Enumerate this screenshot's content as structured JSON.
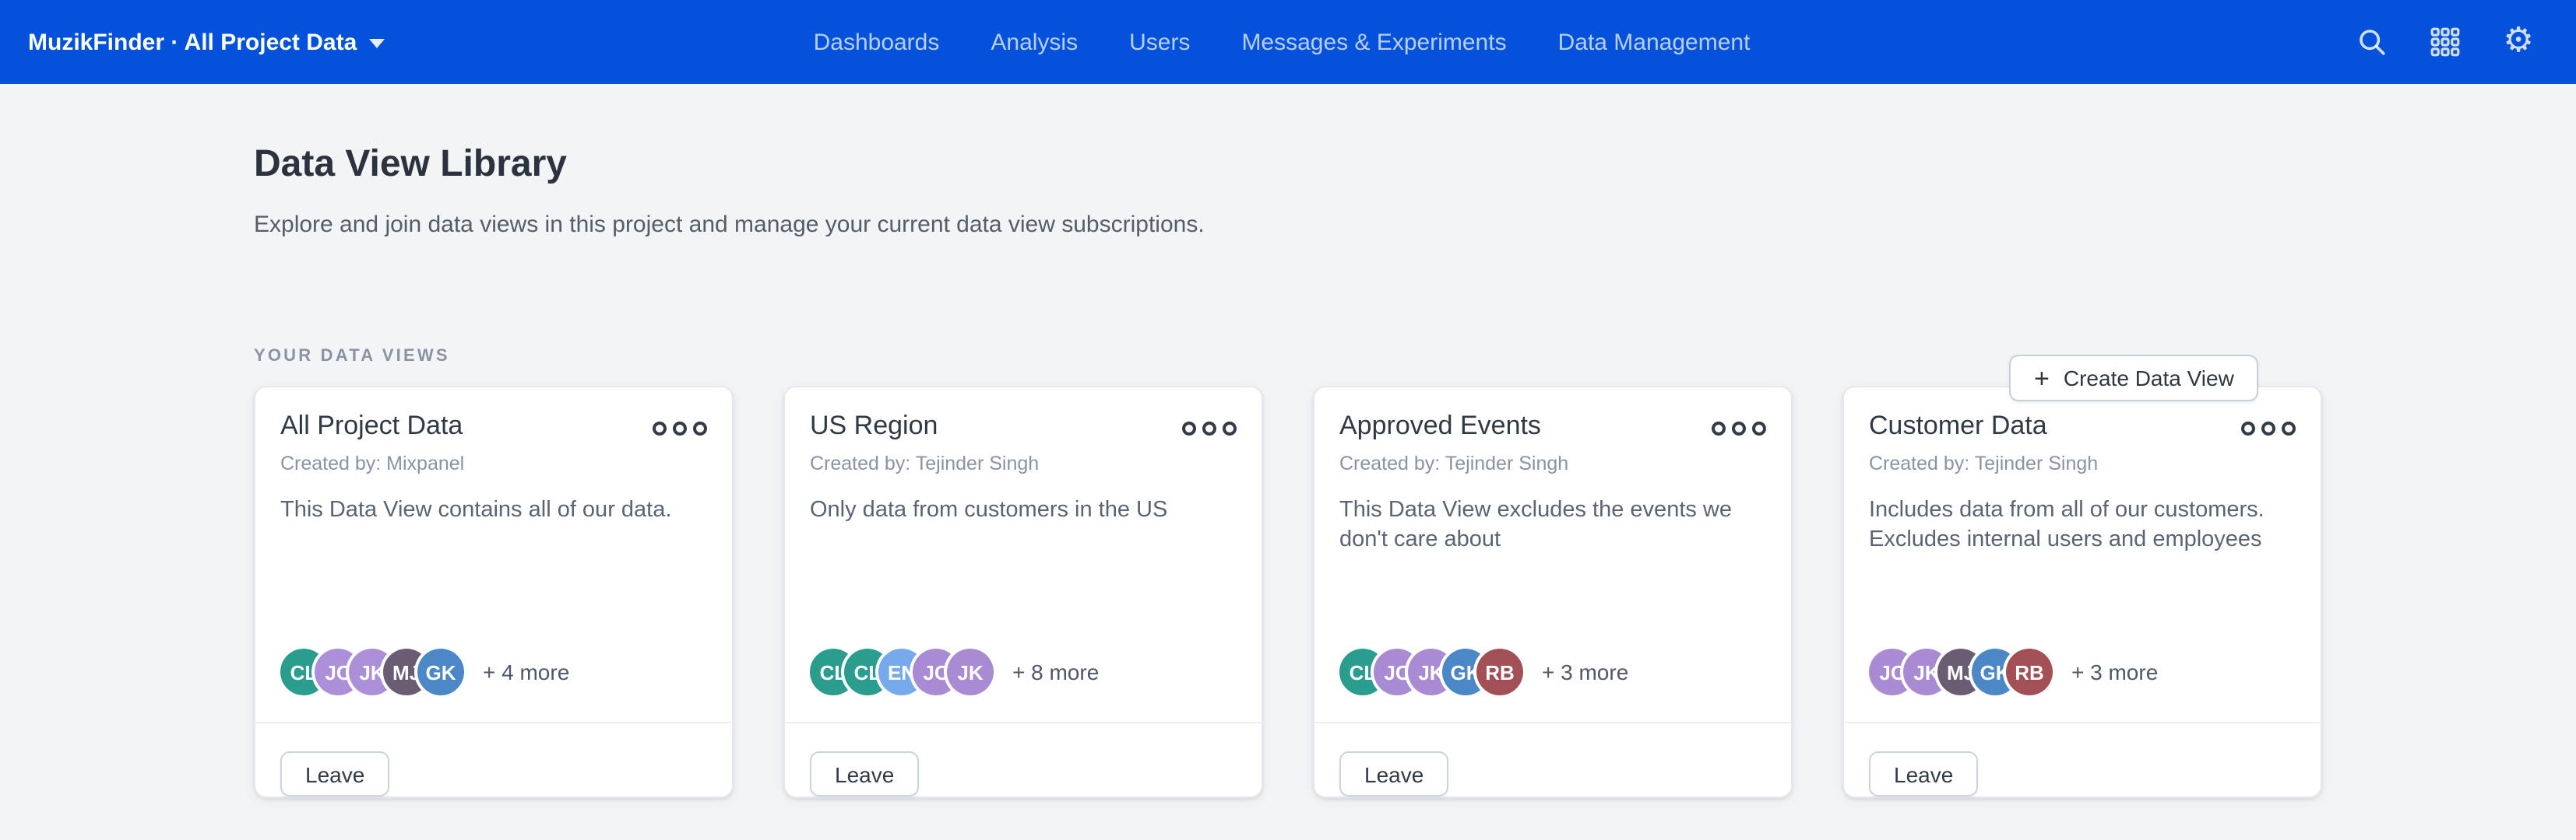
{
  "colors": {
    "navbar_bg": "#0451dc",
    "page_bg": "#f2f4f6",
    "teal": "#2a9d8f",
    "purple": "#ab90d9",
    "dark_purple": "#695c73",
    "blue": "#4c87c7",
    "light_blue": "#77aaec",
    "maroon": "#a25055"
  },
  "navbar": {
    "brand": "MuzikFinder · All Project Data",
    "items": [
      {
        "label": "Dashboards"
      },
      {
        "label": "Analysis"
      },
      {
        "label": "Users"
      },
      {
        "label": "Messages & Experiments"
      },
      {
        "label": "Data Management"
      }
    ],
    "icons": [
      "search-icon",
      "apps-grid-icon",
      "gear-icon"
    ]
  },
  "page": {
    "title": "Data View Library",
    "subtitle": "Explore and join data views in this project and manage your current data view subscriptions.",
    "create_button_label": "Create Data View",
    "section_label": "YOUR DATA VIEWS"
  },
  "cards": [
    {
      "title": "All Project Data",
      "created_by": "Created by: Mixpanel",
      "description": "This Data View contains all of our data.",
      "avatars": [
        {
          "initials": "CL",
          "color": "#2a9d8f"
        },
        {
          "initials": "JC",
          "color": "#ab90d9"
        },
        {
          "initials": "JK",
          "color": "#ab90d9"
        },
        {
          "initials": "MJ",
          "color": "#695c73"
        },
        {
          "initials": "GK",
          "color": "#4c87c7"
        }
      ],
      "more_label": "+ 4 more",
      "leave_label": "Leave"
    },
    {
      "title": "US Region",
      "created_by": "Created by: Tejinder Singh",
      "description": "Only data from customers in the US",
      "avatars": [
        {
          "initials": "CL",
          "color": "#2a9d8f"
        },
        {
          "initials": "CL",
          "color": "#2a9d8f"
        },
        {
          "initials": "EN",
          "color": "#77aaec"
        },
        {
          "initials": "JC",
          "color": "#a98bd4"
        },
        {
          "initials": "JK",
          "color": "#a98bd4"
        }
      ],
      "more_label": "+ 8 more",
      "leave_label": "Leave"
    },
    {
      "title": "Approved Events",
      "created_by": "Created by: Tejinder Singh",
      "description": "This Data View excludes the events we don't care about",
      "avatars": [
        {
          "initials": "CL",
          "color": "#2a9d8f"
        },
        {
          "initials": "JC",
          "color": "#a98bd4"
        },
        {
          "initials": "JK",
          "color": "#a98bd4"
        },
        {
          "initials": "GK",
          "color": "#4c87c7"
        },
        {
          "initials": "RB",
          "color": "#a25055"
        }
      ],
      "more_label": "+ 3 more",
      "leave_label": "Leave"
    },
    {
      "title": "Customer Data",
      "created_by": "Created by: Tejinder Singh",
      "description": "Includes data from all of our customers. Excludes internal users and employees",
      "avatars": [
        {
          "initials": "JC",
          "color": "#a98bd4"
        },
        {
          "initials": "JK",
          "color": "#a98bd4"
        },
        {
          "initials": "MJ",
          "color": "#695c73"
        },
        {
          "initials": "GK",
          "color": "#4c87c7"
        },
        {
          "initials": "RB",
          "color": "#a25055"
        }
      ],
      "more_label": "+ 3 more",
      "leave_label": "Leave"
    }
  ]
}
